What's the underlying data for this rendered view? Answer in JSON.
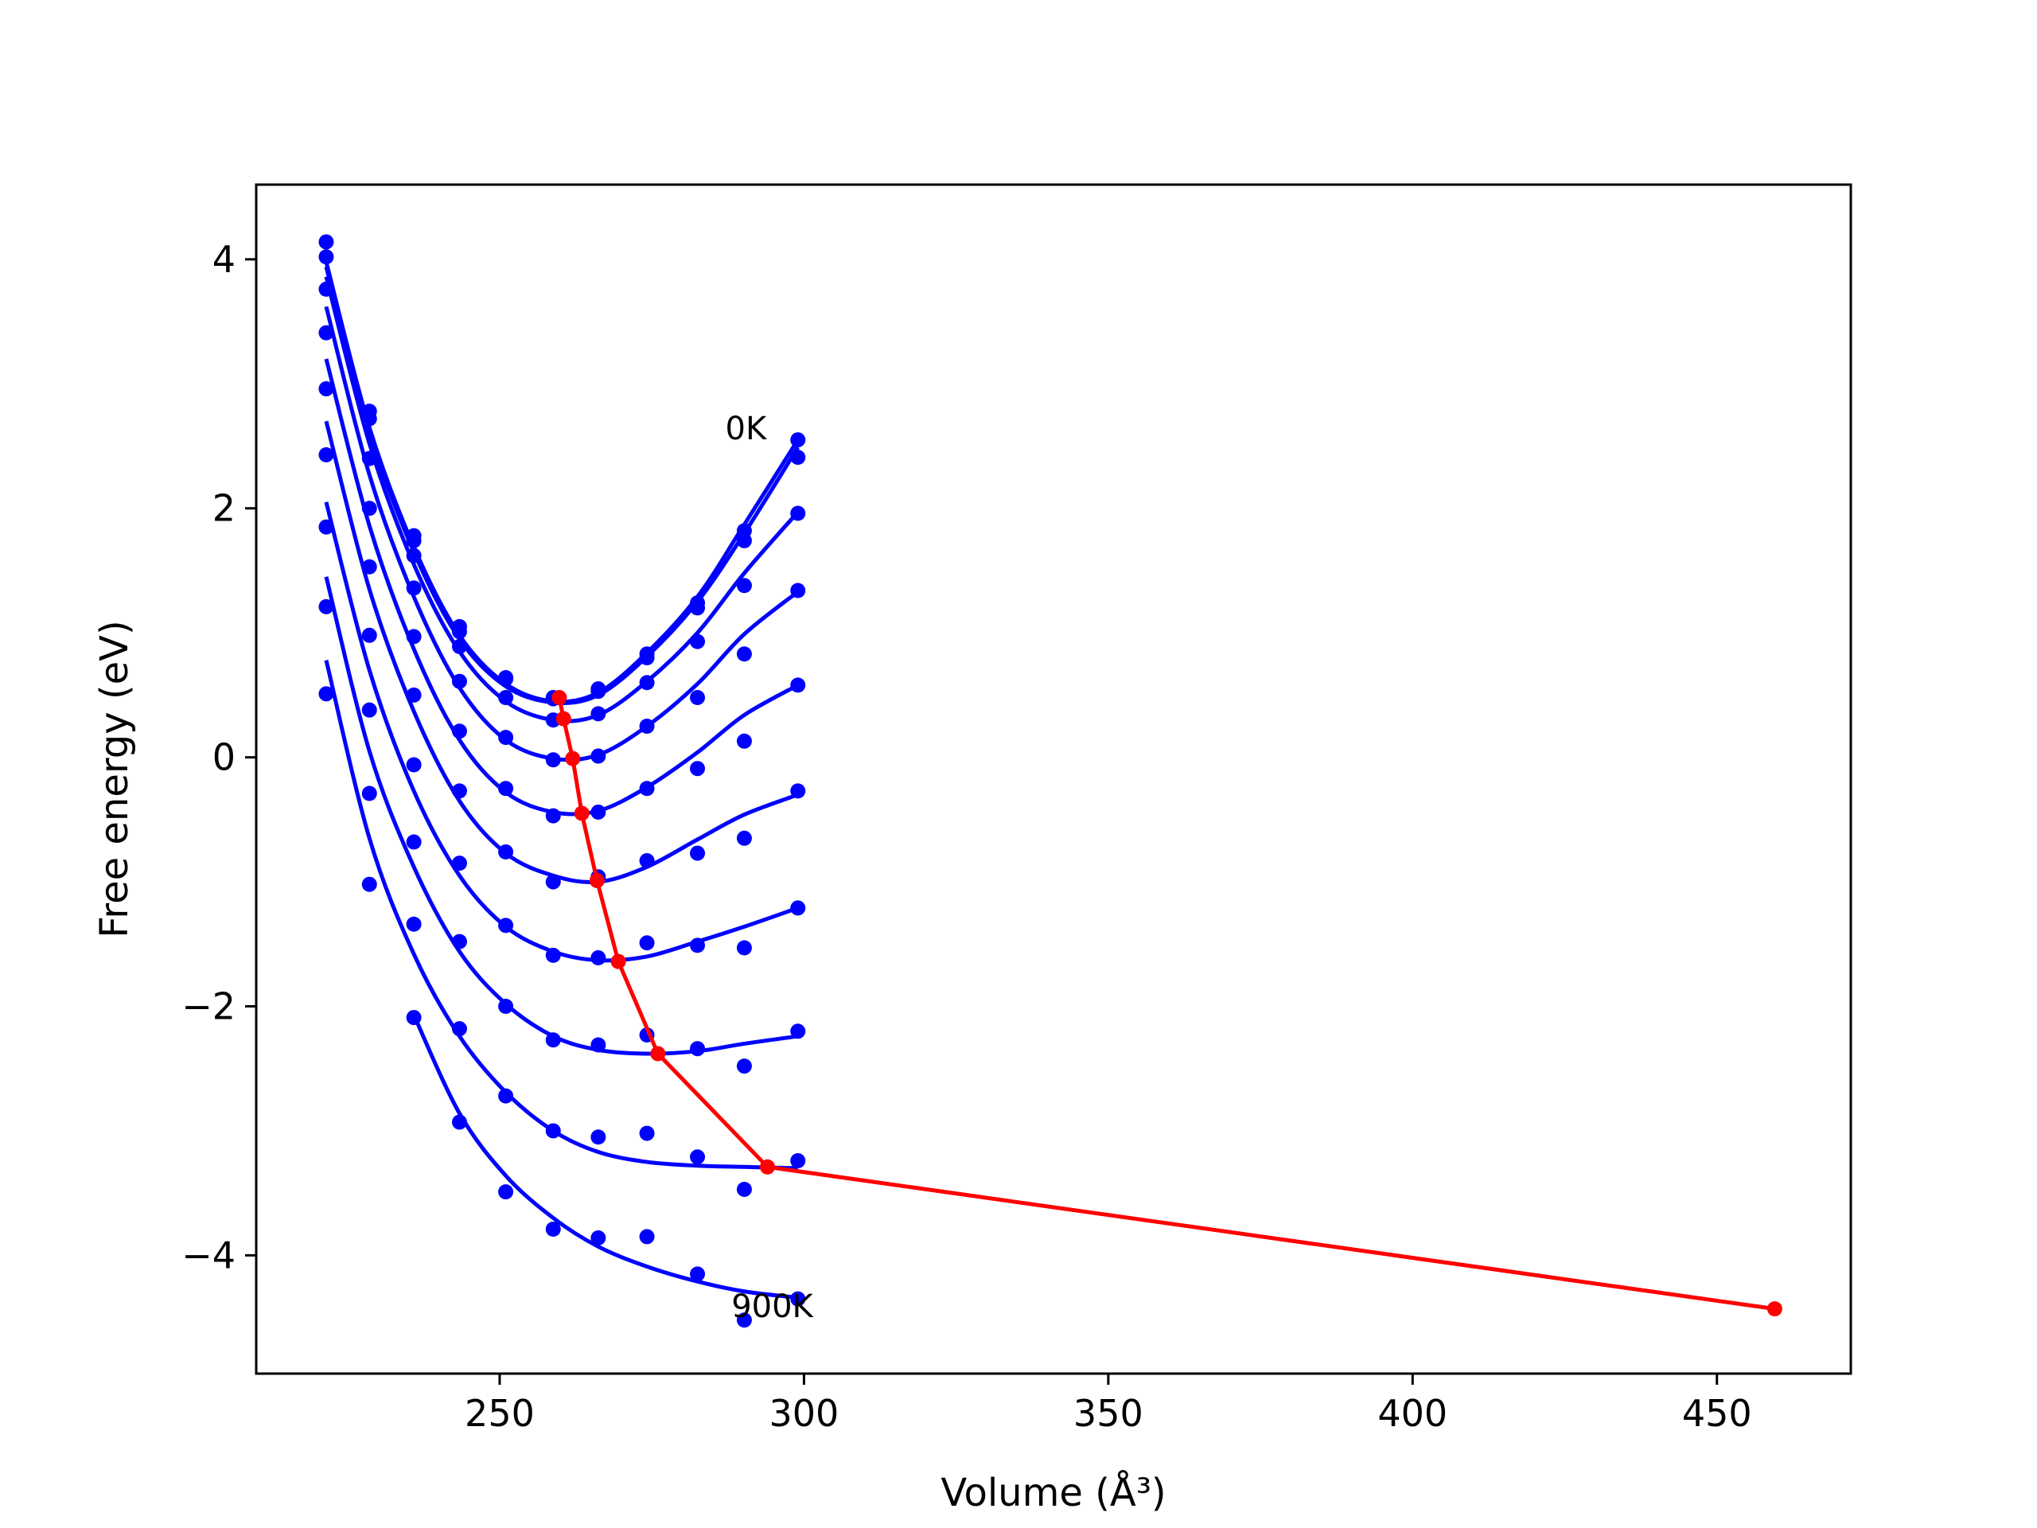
{
  "chart_data": {
    "type": "scatter",
    "xlabel": "Volume (Å³)",
    "ylabel": "Free energy (eV)",
    "xlim": [
      210,
      472
    ],
    "ylim": [
      -4.95,
      4.6
    ],
    "xticks": [
      250,
      300,
      350,
      400,
      450
    ],
    "yticks": [
      4,
      2,
      0,
      -2,
      -4
    ],
    "xtick_labels": [
      "250",
      "300",
      "350",
      "400",
      "450"
    ],
    "ytick_labels": [
      "4",
      "2",
      "0",
      "−2",
      "−4"
    ],
    "grid": false,
    "legend": "none",
    "colors": {
      "points": "#0000ff",
      "fit": "#0000ff",
      "minima": "#ff0000"
    },
    "annotations": [
      {
        "text": "0K",
        "x": 291,
        "y": 2.65
      },
      {
        "text": "900K",
        "x": 292,
        "y": -4.4
      }
    ],
    "volumes": [
      221.5,
      228.6,
      235.9,
      243.4,
      251.0,
      258.8,
      266.2,
      274.2,
      282.5,
      290.2,
      299.0
    ],
    "series": [
      {
        "points": [
          4.14,
          2.78,
          1.78,
          1.05,
          0.64,
          0.48,
          0.55,
          0.83,
          1.24,
          1.82,
          2.55
        ],
        "fit": [
          3.98,
          2.65,
          1.69,
          0.98,
          0.59,
          0.45,
          0.52,
          0.84,
          1.29,
          1.87,
          2.55
        ]
      },
      {
        "points": [
          4.02,
          2.72,
          1.74,
          1.01,
          0.63,
          0.47,
          0.53,
          0.8,
          1.2,
          1.74,
          2.41
        ],
        "fit": [
          3.94,
          2.61,
          1.65,
          0.95,
          0.57,
          0.44,
          0.5,
          0.81,
          1.25,
          1.8,
          2.49
        ]
      },
      {
        "points": [
          3.76,
          2.4,
          1.62,
          0.89,
          0.48,
          0.3,
          0.35,
          0.6,
          0.93,
          1.38,
          1.96
        ],
        "fit": [
          3.86,
          2.52,
          1.55,
          0.85,
          0.45,
          0.3,
          0.34,
          0.61,
          1.0,
          1.48,
          1.97
        ]
      },
      {
        "points": [
          3.41,
          2.0,
          1.36,
          0.61,
          0.16,
          -0.02,
          0.01,
          0.25,
          0.48,
          0.83,
          1.34
        ],
        "fit": [
          3.62,
          2.27,
          1.29,
          0.56,
          0.14,
          -0.01,
          0.02,
          0.25,
          0.59,
          0.99,
          1.33
        ]
      },
      {
        "points": [
          2.96,
          1.53,
          0.97,
          0.21,
          -0.25,
          -0.47,
          -0.44,
          -0.25,
          -0.09,
          0.13,
          0.58
        ],
        "fit": [
          3.2,
          1.86,
          0.87,
          0.14,
          -0.28,
          -0.44,
          -0.43,
          -0.24,
          0.04,
          0.34,
          0.58
        ]
      },
      {
        "points": [
          2.43,
          0.98,
          0.5,
          -0.27,
          -0.76,
          -1.0,
          -0.96,
          -0.83,
          -0.77,
          -0.65,
          -0.27
        ],
        "fit": [
          2.7,
          1.35,
          0.37,
          -0.35,
          -0.77,
          -0.95,
          -1.0,
          -0.88,
          -0.66,
          -0.46,
          -0.3
        ]
      },
      {
        "points": [
          1.85,
          0.38,
          -0.06,
          -0.85,
          -1.35,
          -1.59,
          -1.61,
          -1.49,
          -1.51,
          -1.53,
          -1.21
        ],
        "fit": [
          2.05,
          0.7,
          -0.27,
          -0.95,
          -1.36,
          -1.56,
          -1.63,
          -1.6,
          -1.48,
          -1.36,
          -1.21
        ]
      },
      {
        "points": [
          1.21,
          -0.29,
          -0.68,
          -1.48,
          -2.0,
          -2.27,
          -2.31,
          -2.23,
          -2.34,
          -2.48,
          -2.2
        ],
        "fit": [
          1.45,
          0.05,
          -0.88,
          -1.56,
          -1.98,
          -2.24,
          -2.35,
          -2.38,
          -2.36,
          -2.3,
          -2.24
        ]
      },
      {
        "points": [
          0.51,
          -1.02,
          -1.34,
          -2.18,
          -2.72,
          -3.0,
          -3.05,
          -3.02,
          -3.21,
          -3.47,
          -3.24
        ],
        "fit": [
          0.78,
          -0.65,
          -1.58,
          -2.24,
          -2.69,
          -3.0,
          -3.17,
          -3.25,
          -3.28,
          -3.29,
          -3.3
        ]
      },
      {
        "points": [
          null,
          null,
          -2.09,
          -2.93,
          -3.49,
          -3.79,
          -3.86,
          -3.85,
          -4.15,
          -4.52,
          -4.35
        ],
        "fit": [
          null,
          null,
          -2.07,
          -2.86,
          -3.36,
          -3.7,
          -3.93,
          -4.09,
          -4.21,
          -4.29,
          -4.34
        ]
      }
    ],
    "minima_series": {
      "x": [
        259.8,
        260.5,
        262.0,
        263.5,
        266.0,
        269.5,
        276.0,
        294.0,
        459.5
      ],
      "y": [
        0.48,
        0.31,
        -0.01,
        -0.45,
        -0.99,
        -1.64,
        -2.38,
        -3.29,
        -4.43
      ]
    }
  }
}
